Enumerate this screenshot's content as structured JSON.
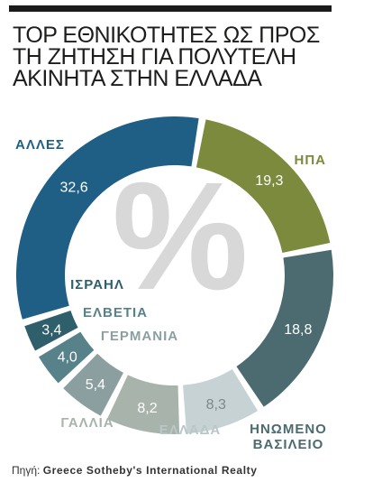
{
  "header": {
    "title_lines": [
      "TOP ΕΘΝΙΚΟΤΗΤΕΣ ΩΣ ΠΡΟΣ",
      "ΤΗ ΖΗΤΗΣΗ ΓΙΑ ΠΟΛΥΤΕΛΗ",
      "ΑΚΙΝΗΤΑ ΣΤΗΝ ΕΛΛΑΔΑ"
    ]
  },
  "center_symbol": "%",
  "footer": {
    "source_label": "Πηγή:",
    "source_name": "Greece Sotheby's International Realty"
  },
  "chart_data": {
    "type": "pie",
    "variant": "donut",
    "title": "TOP ΕΘΝΙΚΟΤΗΤΕΣ ΩΣ ΠΡΟΣ ΤΗ ΖΗΤΗΣΗ ΓΙΑ ΠΟΛΥΤΕΛΗ ΑΚΙΝΗΤΑ ΣΤΗΝ ΕΛΛΑΔΑ",
    "unit": "%",
    "slices": [
      {
        "label": "ΗΠΑ",
        "value": 19.3,
        "value_text": "19,3",
        "color": "#7b8a3c"
      },
      {
        "label": "ΗΝΩΜΕΝΟ ΒΑΣΙΛΕΙΟ",
        "value": 18.8,
        "value_text": "18,8",
        "color": "#4c6b71"
      },
      {
        "label": "ΕΛΛΑΔΑ",
        "value": 8.3,
        "value_text": "8,3",
        "color": "#c6d2d3"
      },
      {
        "label": "ΓΑΛΛΙΑ",
        "value": 8.2,
        "value_text": "8,2",
        "color": "#a8b3ab"
      },
      {
        "label": "ΓΕΡΜΑΝΙΑ",
        "value": 5.4,
        "value_text": "5,4",
        "color": "#8b9fa1"
      },
      {
        "label": "ΕΛΒΕΤΙΑ",
        "value": 4.0,
        "value_text": "4,0",
        "color": "#58828a"
      },
      {
        "label": "ΙΣΡΑΗΛ",
        "value": 3.4,
        "value_text": "3,4",
        "color": "#2f5f6b"
      },
      {
        "label": "ΑΛΛΕΣ",
        "value": 32.6,
        "value_text": "32,6",
        "color": "#1f5f86"
      }
    ]
  }
}
